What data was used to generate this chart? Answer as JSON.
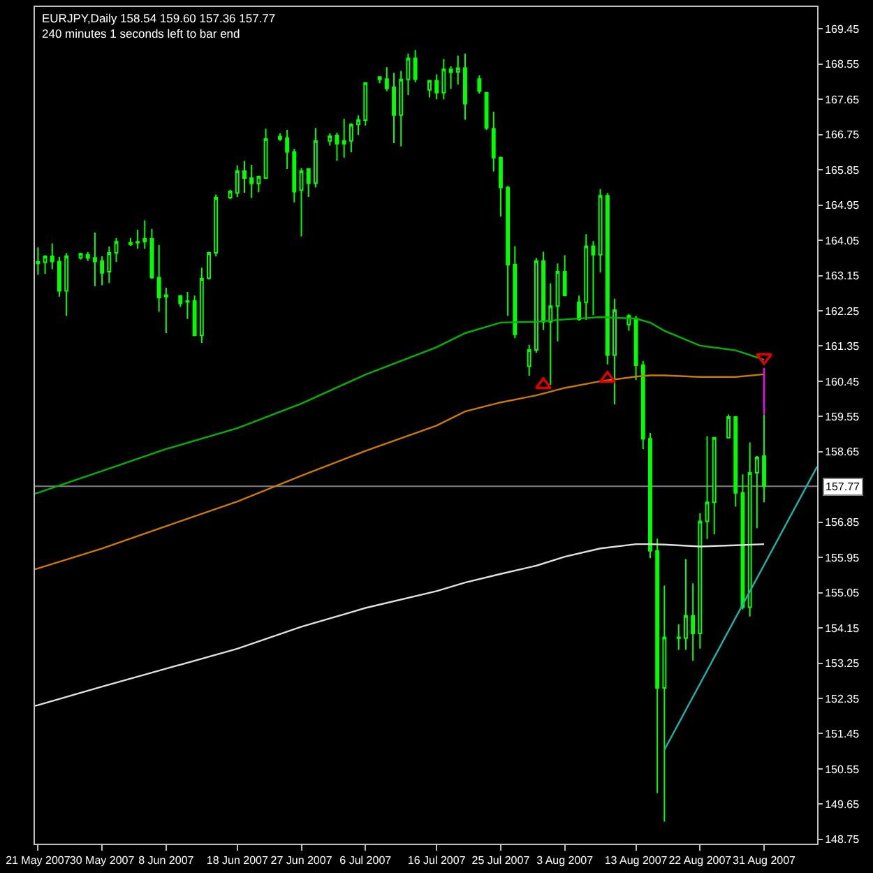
{
  "chart_data": {
    "type": "candlestick",
    "title": "EURJPY,Daily 158.54 159.60 157.36 157.77",
    "subtitle": "240 minutes 1 seconds left to bar end",
    "color": "#00ff00",
    "x": [
      "2007-05-21",
      "2007-05-22",
      "2007-05-23",
      "2007-05-24",
      "2007-05-25",
      "2007-05-27",
      "2007-05-28",
      "2007-05-29",
      "2007-05-30",
      "2007-05-31",
      "2007-06-01",
      "2007-06-03",
      "2007-06-04",
      "2007-06-05",
      "2007-06-06",
      "2007-06-07",
      "2007-06-08",
      "2007-06-10",
      "2007-06-11",
      "2007-06-12",
      "2007-06-13",
      "2007-06-14",
      "2007-06-15",
      "2007-06-17",
      "2007-06-18",
      "2007-06-19",
      "2007-06-20",
      "2007-06-21",
      "2007-06-22",
      "2007-06-24",
      "2007-06-25",
      "2007-06-26",
      "2007-06-27",
      "2007-06-28",
      "2007-06-29",
      "2007-07-01",
      "2007-07-02",
      "2007-07-03",
      "2007-07-04",
      "2007-07-05",
      "2007-07-06",
      "2007-07-08",
      "2007-07-09",
      "2007-07-10",
      "2007-07-11",
      "2007-07-12",
      "2007-07-13",
      "2007-07-15",
      "2007-07-16",
      "2007-07-17",
      "2007-07-18",
      "2007-07-19",
      "2007-07-20",
      "2007-07-22",
      "2007-07-23",
      "2007-07-24",
      "2007-07-25",
      "2007-07-26",
      "2007-07-27",
      "2007-07-29",
      "2007-07-30",
      "2007-07-31",
      "2007-08-01",
      "2007-08-02",
      "2007-08-03",
      "2007-08-05",
      "2007-08-06",
      "2007-08-07",
      "2007-08-08",
      "2007-08-09",
      "2007-08-10",
      "2007-08-12",
      "2007-08-13",
      "2007-08-14",
      "2007-08-15",
      "2007-08-16",
      "2007-08-17",
      "2007-08-19",
      "2007-08-20",
      "2007-08-21",
      "2007-08-22",
      "2007-08-23",
      "2007-08-24",
      "2007-08-26",
      "2007-08-27",
      "2007-08-28",
      "2007-08-29",
      "2007-08-30",
      "2007-08-31"
    ],
    "ohlc": [
      [
        163.5,
        163.87,
        163.17,
        163.46
      ],
      [
        163.49,
        163.67,
        163.19,
        163.64
      ],
      [
        163.64,
        163.97,
        163.31,
        163.51
      ],
      [
        163.51,
        163.63,
        162.61,
        162.76
      ],
      [
        162.76,
        163.72,
        162.12,
        163.64
      ],
      [
        163.6,
        163.73,
        163.56,
        163.71
      ],
      [
        163.68,
        163.75,
        163.52,
        163.6
      ],
      [
        163.6,
        164.25,
        162.88,
        163.51
      ],
      [
        163.52,
        163.64,
        162.9,
        163.22
      ],
      [
        163.25,
        163.89,
        162.96,
        163.73
      ],
      [
        163.73,
        164.11,
        163.5,
        164.01
      ],
      [
        163.95,
        164.11,
        163.91,
        163.99
      ],
      [
        163.99,
        164.32,
        163.84,
        164.01
      ],
      [
        164.02,
        164.56,
        163.84,
        164.09
      ],
      [
        164.09,
        164.34,
        163.07,
        163.1
      ],
      [
        163.1,
        163.93,
        162.23,
        162.59
      ],
      [
        162.61,
        162.84,
        161.68,
        162.65
      ],
      [
        162.63,
        162.65,
        162.35,
        162.44
      ],
      [
        162.48,
        162.73,
        162.04,
        162.5
      ],
      [
        162.5,
        162.64,
        161.61,
        161.62
      ],
      [
        161.62,
        163.35,
        161.43,
        163.07
      ],
      [
        163.08,
        163.76,
        163.05,
        163.73
      ],
      [
        163.73,
        165.22,
        163.64,
        165.14
      ],
      [
        165.14,
        165.34,
        165.1,
        165.3
      ],
      [
        165.26,
        165.96,
        165.16,
        165.82
      ],
      [
        165.82,
        166.08,
        165.26,
        165.64
      ],
      [
        165.64,
        165.98,
        165.13,
        165.5
      ],
      [
        165.5,
        165.68,
        165.28,
        165.68
      ],
      [
        165.64,
        166.9,
        165.63,
        166.64
      ],
      [
        166.64,
        166.78,
        166.59,
        166.7
      ],
      [
        166.66,
        166.87,
        165.87,
        166.31
      ],
      [
        166.31,
        166.39,
        165.02,
        165.29
      ],
      [
        165.33,
        165.9,
        164.15,
        165.82
      ],
      [
        165.87,
        165.87,
        165.16,
        165.51
      ],
      [
        165.51,
        166.92,
        165.4,
        166.59
      ],
      [
        166.59,
        166.78,
        166.47,
        166.71
      ],
      [
        166.73,
        166.8,
        166.08,
        166.52
      ],
      [
        166.52,
        167.15,
        166.16,
        166.59
      ],
      [
        166.59,
        167.04,
        166.3,
        167.01
      ],
      [
        167.01,
        167.24,
        166.74,
        167.12
      ],
      [
        167.12,
        168.09,
        166.98,
        168.07
      ],
      [
        168.22,
        168.24,
        168.06,
        168.16
      ],
      [
        168.17,
        168.47,
        167.86,
        167.93
      ],
      [
        167.96,
        168.33,
        166.53,
        167.25
      ],
      [
        167.25,
        168.38,
        166.45,
        168.16
      ],
      [
        168.16,
        168.82,
        167.76,
        168.7
      ],
      [
        168.7,
        168.91,
        168.09,
        168.17
      ],
      [
        167.89,
        168.15,
        167.7,
        168.13
      ],
      [
        168.13,
        168.29,
        167.65,
        167.82
      ],
      [
        167.82,
        168.68,
        167.65,
        168.42
      ],
      [
        168.42,
        168.5,
        167.92,
        168.34
      ],
      [
        168.35,
        168.77,
        168.03,
        168.45
      ],
      [
        168.45,
        168.82,
        167.13,
        167.54
      ],
      [
        168.17,
        168.26,
        167.8,
        167.86
      ],
      [
        167.82,
        167.83,
        166.87,
        166.92
      ],
      [
        166.9,
        167.34,
        165.81,
        166.16
      ],
      [
        166.16,
        166.19,
        164.66,
        165.4
      ],
      [
        165.4,
        165.44,
        162.12,
        163.43
      ],
      [
        163.43,
        163.9,
        161.55,
        161.65
      ],
      [
        160.83,
        161.38,
        160.59,
        161.25
      ],
      [
        161.25,
        163.6,
        161.18,
        163.52
      ],
      [
        163.52,
        163.76,
        161.76,
        161.97
      ],
      [
        161.97,
        162.95,
        160.36,
        162.37
      ],
      [
        162.37,
        163.46,
        161.47,
        163.25
      ],
      [
        163.25,
        163.67,
        162.64,
        162.64
      ],
      [
        162.47,
        162.64,
        162.0,
        162.03
      ],
      [
        162.47,
        164.21,
        162.02,
        163.9
      ],
      [
        163.9,
        164.03,
        162.14,
        163.68
      ],
      [
        163.68,
        165.36,
        163.23,
        165.19
      ],
      [
        165.19,
        165.26,
        160.88,
        161.12
      ],
      [
        161.12,
        162.56,
        159.86,
        162.27
      ],
      [
        161.9,
        162.17,
        161.74,
        162.12
      ],
      [
        162.06,
        162.12,
        160.48,
        160.86
      ],
      [
        160.86,
        160.97,
        158.72,
        158.98
      ],
      [
        158.98,
        159.13,
        155.93,
        156.12
      ],
      [
        156.12,
        156.43,
        149.93,
        152.62
      ],
      [
        152.62,
        155.23,
        149.2,
        153.91
      ],
      [
        153.91,
        154.24,
        153.59,
        153.89
      ],
      [
        153.89,
        155.91,
        153.59,
        154.46
      ],
      [
        154.46,
        155.29,
        153.31,
        154.01
      ],
      [
        154.01,
        157.08,
        153.62,
        156.87
      ],
      [
        156.87,
        159.05,
        156.42,
        157.36
      ],
      [
        157.36,
        159.02,
        156.54,
        159.01
      ],
      [
        159.01,
        159.6,
        159.0,
        159.54
      ],
      [
        159.54,
        159.56,
        157.25,
        157.6
      ],
      [
        157.6,
        158.07,
        154.62,
        154.68
      ],
      [
        154.68,
        158.89,
        154.44,
        158.11
      ],
      [
        158.11,
        158.54,
        156.7,
        158.51
      ],
      [
        158.54,
        159.6,
        157.36,
        157.77
      ]
    ],
    "series": [
      {
        "type": "line",
        "color": "#00b400",
        "x": [
          "2007-05-20T13:41",
          "2007-05-21",
          "2007-05-30",
          "2007-06-08",
          "2007-06-18",
          "2007-06-27",
          "2007-07-06",
          "2007-07-16",
          "2007-07-20",
          "2007-07-25",
          "2007-07-30",
          "2007-08-03",
          "2007-08-08",
          "2007-08-13",
          "2007-08-15",
          "2007-08-17",
          "2007-08-22",
          "2007-08-27",
          "2007-08-31"
        ],
        "values": [
          157.58,
          157.6,
          158.16,
          158.72,
          159.25,
          159.88,
          160.62,
          161.32,
          161.68,
          161.95,
          161.97,
          162.03,
          162.09,
          162.05,
          161.95,
          161.74,
          161.36,
          161.24,
          161.0
        ]
      },
      {
        "type": "line",
        "color": "#cc7a00",
        "x": [
          "2007-05-20T13:41",
          "2007-05-21",
          "2007-05-30",
          "2007-06-08",
          "2007-06-18",
          "2007-06-27",
          "2007-07-06",
          "2007-07-16",
          "2007-07-20",
          "2007-07-25",
          "2007-07-30",
          "2007-08-03",
          "2007-08-08",
          "2007-08-13",
          "2007-08-15",
          "2007-08-17",
          "2007-08-22",
          "2007-08-27",
          "2007-08-31"
        ],
        "values": [
          155.65,
          155.67,
          156.18,
          156.75,
          157.38,
          158.04,
          158.67,
          159.32,
          159.68,
          159.91,
          160.09,
          160.28,
          160.45,
          160.57,
          160.6,
          160.6,
          160.56,
          160.56,
          160.63
        ]
      },
      {
        "type": "line",
        "color": "#e0e0e0",
        "x": [
          "2007-05-20T13:41",
          "2007-05-21",
          "2007-05-30",
          "2007-06-08",
          "2007-06-18",
          "2007-06-27",
          "2007-07-06",
          "2007-07-16",
          "2007-07-20",
          "2007-07-25",
          "2007-07-30",
          "2007-08-03",
          "2007-08-08",
          "2007-08-13",
          "2007-08-15",
          "2007-08-17",
          "2007-08-22",
          "2007-08-27",
          "2007-08-31"
        ],
        "values": [
          152.16,
          152.18,
          152.65,
          153.11,
          153.62,
          154.18,
          154.66,
          155.09,
          155.31,
          155.53,
          155.74,
          155.97,
          156.18,
          156.29,
          156.29,
          156.28,
          156.23,
          156.26,
          156.29
        ]
      },
      {
        "type": "line",
        "color": "#20b2aa",
        "x": [
          "2007-08-17",
          "2007-09-07T10:48"
        ],
        "values": [
          151.04,
          158.27
        ]
      },
      {
        "type": "line",
        "color": "#ff00ff",
        "x": [
          "2007-08-31",
          "2007-08-31"
        ],
        "values": [
          160.79,
          159.6
        ]
      },
      {
        "type": "scatter",
        "marker": "triangle",
        "color": "#e00000",
        "x": [
          "2007-07-31",
          "2007-08-09"
        ],
        "values": [
          160.36,
          160.52
        ]
      },
      {
        "type": "scatter",
        "marker": "triangle",
        "color": "#e00000",
        "x": [
          "2007-08-31"
        ],
        "values": [
          161.06
        ]
      }
    ],
    "xlim": [
      "2007-05-20T13:41",
      "2007-09-07T10:48"
    ],
    "xticks": [
      {
        "value": "2007-05-21",
        "label": "21 May 2007"
      },
      {
        "value": "2007-05-30",
        "label": "30 May 2007"
      },
      {
        "value": "2007-06-08",
        "label": "8 Jun 2007"
      },
      {
        "value": "2007-06-18",
        "label": "18 Jun 2007"
      },
      {
        "value": "2007-06-27",
        "label": "27 Jun 2007"
      },
      {
        "value": "2007-07-06",
        "label": "6 Jul 2007"
      },
      {
        "value": "2007-07-16",
        "label": "16 Jul 2007"
      },
      {
        "value": "2007-07-25",
        "label": "25 Jul 2007"
      },
      {
        "value": "2007-08-03",
        "label": "3 Aug 2007"
      },
      {
        "value": "2007-08-13",
        "label": "13 Aug 2007"
      },
      {
        "value": "2007-08-22",
        "label": "22 Aug 2007"
      },
      {
        "value": "2007-08-31",
        "label": "31 Aug 2007"
      }
    ],
    "ylim": [
      148.64,
      170.01
    ],
    "yticks": [
      148.75,
      149.65,
      150.55,
      151.45,
      152.35,
      153.25,
      154.15,
      155.05,
      155.95,
      156.85,
      158.65,
      159.55,
      160.45,
      161.35,
      162.25,
      163.15,
      164.05,
      164.95,
      165.85,
      166.75,
      167.65,
      168.55,
      169.45
    ],
    "ref_lines": [
      {
        "axis": "y",
        "value": 157.77,
        "label": "157.77",
        "color": "#808080"
      }
    ]
  }
}
